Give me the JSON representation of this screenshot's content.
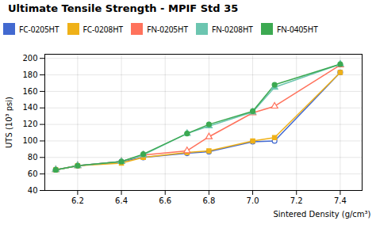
{
  "chart_data": {
    "type": "line",
    "title": "Ultimate Tensile Strength - MPIF Std 35",
    "xlabel": "Sintered Density (g/cm³)",
    "ylabel": "UTS (10³ psi)",
    "x": [
      6.1,
      6.2,
      6.4,
      6.5,
      6.7,
      6.8,
      7.0,
      7.1,
      7.4
    ],
    "series": [
      {
        "name": "FC-0205HT",
        "values": [
          65,
          70,
          75,
          80,
          85,
          87,
          99,
          100,
          183
        ],
        "marker": "circle-open"
      },
      {
        "name": "FC-0208HT",
        "values": [
          65,
          70,
          73,
          80,
          86,
          88,
          100,
          104,
          183
        ],
        "marker": "square"
      },
      {
        "name": "FN-0205HT",
        "values": [
          65,
          70,
          75,
          83,
          88,
          105,
          134,
          142,
          192
        ],
        "marker": "triangle-open"
      },
      {
        "name": "FN-0208HT",
        "values": [
          65,
          70,
          75,
          83,
          109,
          118,
          135,
          165,
          193
        ],
        "marker": "triangle"
      },
      {
        "name": "FN-0405HT",
        "values": [
          65,
          70,
          75,
          84,
          109,
          120,
          136,
          168,
          193
        ],
        "marker": "circle"
      }
    ],
    "xlim": [
      6.05,
      7.5
    ],
    "xticks": [
      6.2,
      6.4,
      6.6,
      6.8,
      {
        "value": 7.0,
        "label": "7.0"
      },
      7.2,
      7.4
    ],
    "ylim": [
      40,
      205
    ],
    "yticks": [
      40,
      60,
      80,
      100,
      120,
      140,
      160,
      180,
      200
    ],
    "grid": true
  }
}
